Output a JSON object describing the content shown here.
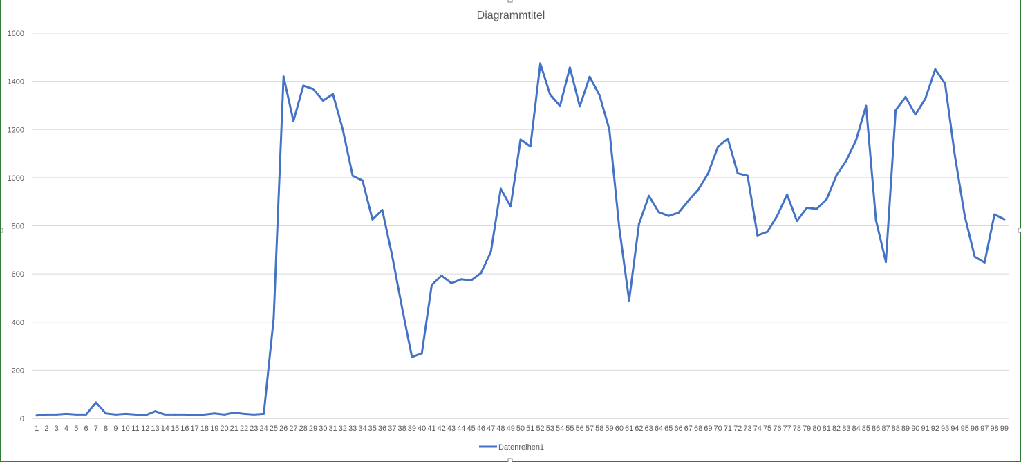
{
  "chart_data": {
    "type": "line",
    "title": "Diagrammtitel",
    "xlabel": "",
    "ylabel": "",
    "ylim": [
      0,
      1600
    ],
    "yticks": [
      "0",
      "200",
      "400",
      "600",
      "800",
      "1000",
      "1200",
      "1400",
      "1600"
    ],
    "grid": true,
    "legend_position": "bottom",
    "categories": [
      "1",
      "2",
      "3",
      "4",
      "5",
      "6",
      "7",
      "8",
      "9",
      "10",
      "11",
      "12",
      "13",
      "14",
      "15",
      "16",
      "17",
      "18",
      "19",
      "20",
      "21",
      "22",
      "23",
      "24",
      "25",
      "26",
      "27",
      "28",
      "29",
      "30",
      "31",
      "32",
      "33",
      "34",
      "35",
      "36",
      "37",
      "38",
      "39",
      "40",
      "41",
      "42",
      "43",
      "44",
      "45",
      "46",
      "47",
      "48",
      "49",
      "50",
      "51",
      "52",
      "53",
      "54",
      "55",
      "56",
      "57",
      "58",
      "59",
      "60",
      "61",
      "62",
      "63",
      "64",
      "65",
      "66",
      "67",
      "68",
      "69",
      "70",
      "71",
      "72",
      "73",
      "74",
      "75",
      "76",
      "77",
      "78",
      "79",
      "80",
      "81",
      "82",
      "83",
      "84",
      "85",
      "86",
      "87",
      "88",
      "89",
      "90",
      "91",
      "92",
      "93",
      "94",
      "95",
      "96",
      "97",
      "98",
      "99"
    ],
    "series": [
      {
        "name": "Datenreihen1",
        "color": "#4472C4",
        "values": [
          12,
          16,
          16,
          19,
          16,
          16,
          66,
          21,
          16,
          19,
          16,
          13,
          30,
          16,
          16,
          16,
          13,
          16,
          21,
          16,
          24,
          19,
          16,
          19,
          415,
          1420,
          1235,
          1382,
          1368,
          1320,
          1347,
          1200,
          1008,
          988,
          826,
          866,
          676,
          460,
          255,
          270,
          554,
          593,
          562,
          578,
          573,
          604,
          693,
          954,
          880,
          1158,
          1130,
          1474,
          1345,
          1298,
          1457,
          1296,
          1419,
          1342,
          1200,
          793,
          490,
          808,
          924,
          857,
          841,
          854,
          904,
          950,
          1018,
          1129,
          1162,
          1018,
          1008,
          760,
          775,
          842,
          930,
          820,
          875,
          870,
          910,
          1010,
          1071,
          1157,
          1298,
          823,
          650,
          1280,
          1335,
          1262,
          1328,
          1450,
          1390,
          1090,
          840,
          672,
          648,
          847,
          827
        ]
      }
    ]
  }
}
